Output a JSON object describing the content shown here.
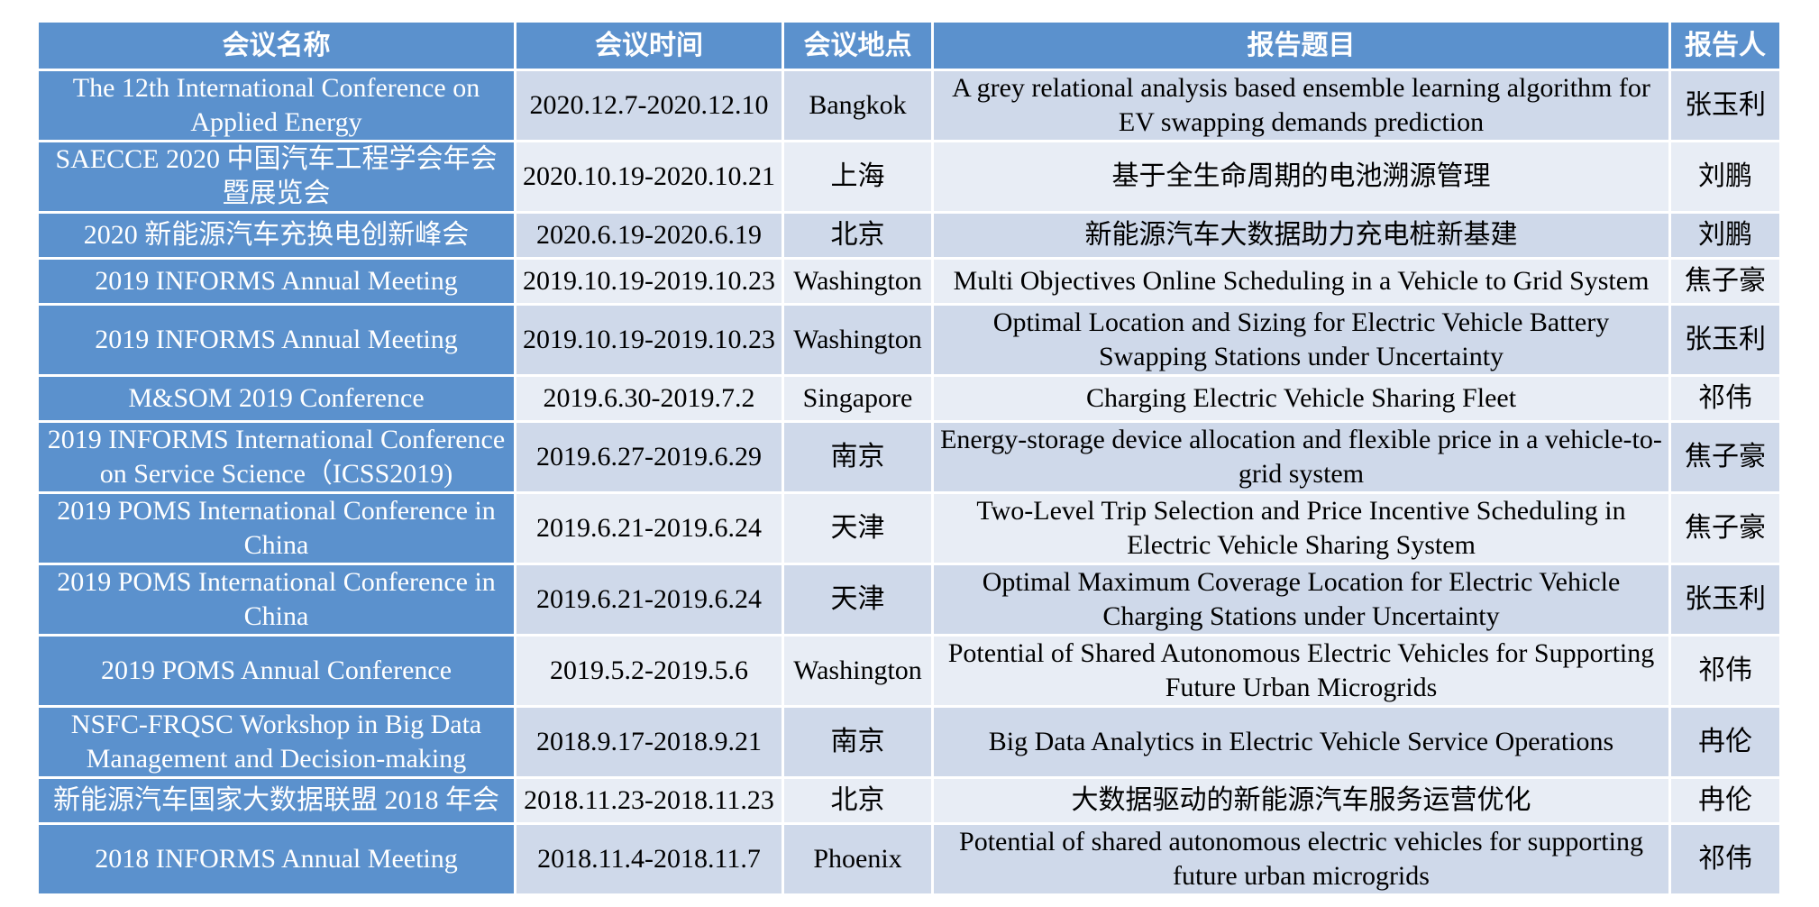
{
  "headers": [
    "会议名称",
    "会议时间",
    "会议地点",
    "报告题目",
    "报告人"
  ],
  "rows": [
    {
      "conference": "The 12th International Conference on Applied Energy",
      "date": "2020.12.7-2020.12.10",
      "location": "Bangkok",
      "title": "A grey relational analysis based ensemble learning algorithm for EV swapping demands prediction",
      "speaker": "张玉利"
    },
    {
      "conference": "SAECCE 2020 中国汽车工程学会年会暨展览会",
      "date": "2020.10.19-2020.10.21",
      "location": "上海",
      "title": "基于全生命周期的电池溯源管理",
      "speaker": "刘鹏"
    },
    {
      "conference": "2020 新能源汽车充换电创新峰会",
      "date": "2020.6.19-2020.6.19",
      "location": "北京",
      "title": "新能源汽车大数据助力充电桩新基建",
      "speaker": "刘鹏"
    },
    {
      "conference": "2019 INFORMS Annual Meeting",
      "date": "2019.10.19-2019.10.23",
      "location": "Washington",
      "title": "Multi Objectives Online Scheduling in a Vehicle to Grid System",
      "speaker": "焦子豪"
    },
    {
      "conference": "2019 INFORMS Annual Meeting",
      "date": "2019.10.19-2019.10.23",
      "location": "Washington",
      "title": "Optimal Location and Sizing for Electric Vehicle Battery Swapping Stations under Uncertainty",
      "speaker": "张玉利"
    },
    {
      "conference": "M&SOM 2019 Conference",
      "date": "2019.6.30-2019.7.2",
      "location": "Singapore",
      "title": "Charging Electric Vehicle Sharing Fleet",
      "speaker": "祁伟"
    },
    {
      "conference": "2019 INFORMS International Conference on Service Science（ICSS2019)",
      "date": "2019.6.27-2019.6.29",
      "location": "南京",
      "title": "Energy-storage device allocation and flexible price in a vehicle-to-grid system",
      "speaker": "焦子豪"
    },
    {
      "conference": "2019 POMS International Conference in China",
      "date": "2019.6.21-2019.6.24",
      "location": "天津",
      "title": "Two-Level Trip Selection and Price Incentive Scheduling in Electric Vehicle Sharing System",
      "speaker": "焦子豪"
    },
    {
      "conference": "2019 POMS International Conference in China",
      "date": "2019.6.21-2019.6.24",
      "location": "天津",
      "title": "Optimal Maximum Coverage Location for Electric Vehicle Charging Stations under Uncertainty",
      "speaker": "张玉利"
    },
    {
      "conference": "2019 POMS Annual Conference",
      "date": "2019.5.2-2019.5.6",
      "location": "Washington",
      "title": "Potential of Shared Autonomous Electric Vehicles for Supporting Future Urban Microgrids",
      "speaker": "祁伟"
    },
    {
      "conference": "NSFC-FRQSC Workshop in Big Data Management and Decision-making",
      "date": "2018.9.17-2018.9.21",
      "location": "南京",
      "title": "Big Data Analytics in Electric Vehicle Service Operations",
      "speaker": "冉伦"
    },
    {
      "conference": "新能源汽车国家大数据联盟 2018 年会",
      "date": "2018.11.23-2018.11.23",
      "location": "北京",
      "title": "大数据驱动的新能源汽车服务运营优化",
      "speaker": "冉伦"
    },
    {
      "conference": "2018 INFORMS Annual Meeting",
      "date": "2018.11.4-2018.11.7",
      "location": "Phoenix",
      "title": "Potential of shared autonomous electric vehicles for supporting future urban microgrids",
      "speaker": "祁伟"
    }
  ],
  "colors": {
    "header_bg": "#5b91cd",
    "conference_bg": "#5b91cd",
    "row_band_dark": "#cfd9ea",
    "row_band_light": "#e8edf5"
  }
}
